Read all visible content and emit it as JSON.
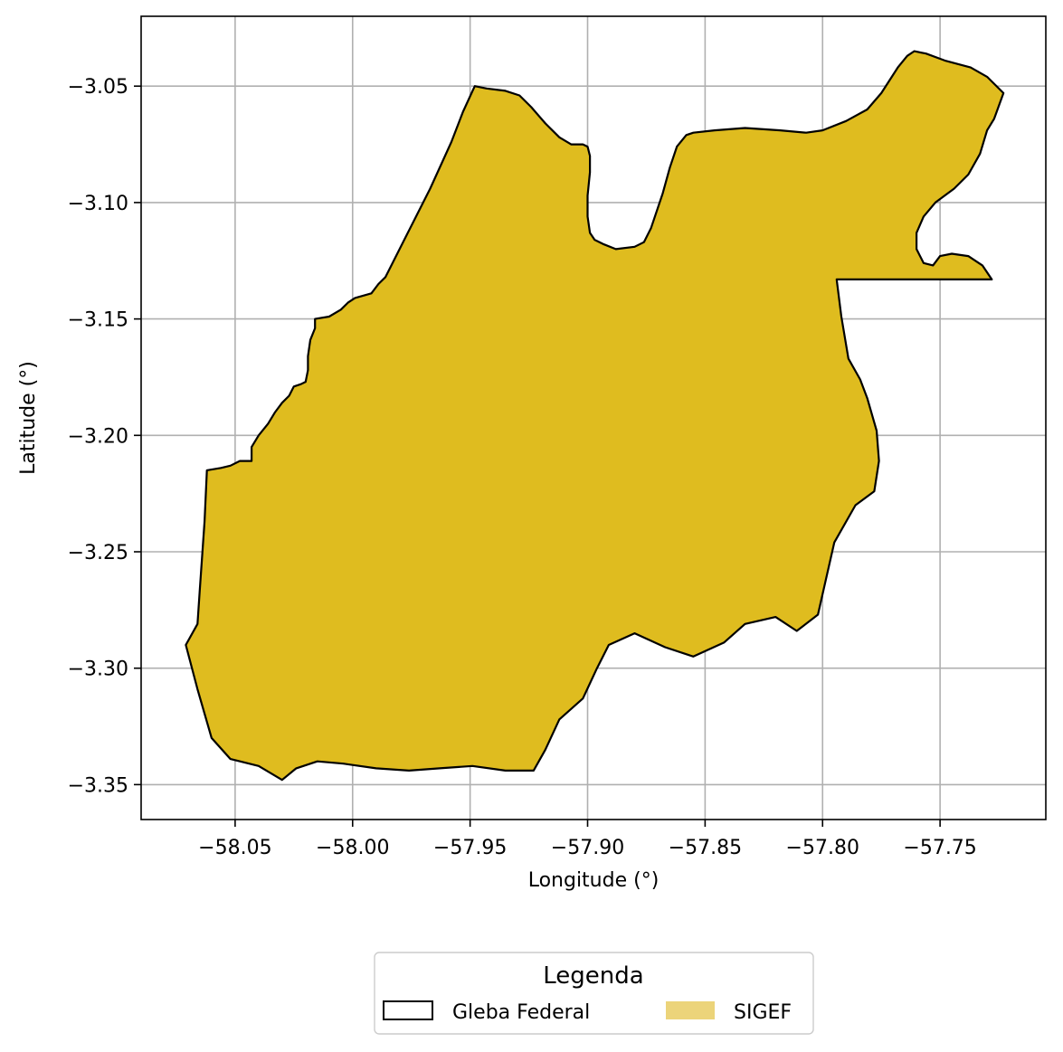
{
  "chart_data": {
    "type": "map",
    "title": "",
    "xlabel": "Longitude (°)",
    "ylabel": "Latitude (°)",
    "xlim": [
      -58.09,
      -57.705
    ],
    "ylim": [
      -3.365,
      -3.02
    ],
    "grid": true,
    "x_ticks": [
      -58.05,
      -58.0,
      -57.95,
      -57.9,
      -57.85,
      -57.8,
      -57.75
    ],
    "x_tick_labels": [
      "−58.05",
      "−58.00",
      "−57.95",
      "−57.90",
      "−57.85",
      "−57.80",
      "−57.75"
    ],
    "y_ticks": [
      -3.05,
      -3.1,
      -3.15,
      -3.2,
      -3.25,
      -3.3,
      -3.35
    ],
    "y_tick_labels": [
      "−3.05",
      "−3.10",
      "−3.15",
      "−3.20",
      "−3.25",
      "−3.30",
      "−3.35"
    ],
    "polygon": {
      "fill": "#dfbc1f",
      "stroke": "#000000",
      "coordinates": [
        [
          -57.948,
          -3.05
        ],
        [
          -57.943,
          -3.051
        ],
        [
          -57.935,
          -3.052
        ],
        [
          -57.929,
          -3.054
        ],
        [
          -57.924,
          -3.059
        ],
        [
          -57.918,
          -3.066
        ],
        [
          -57.912,
          -3.072
        ],
        [
          -57.907,
          -3.075
        ],
        [
          -57.902,
          -3.075
        ],
        [
          -57.9,
          -3.076
        ],
        [
          -57.899,
          -3.08
        ],
        [
          -57.899,
          -3.087
        ],
        [
          -57.9,
          -3.097
        ],
        [
          -57.9,
          -3.106
        ],
        [
          -57.899,
          -3.113
        ],
        [
          -57.897,
          -3.116
        ],
        [
          -57.893,
          -3.118
        ],
        [
          -57.888,
          -3.12
        ],
        [
          -57.88,
          -3.119
        ],
        [
          -57.876,
          -3.117
        ],
        [
          -57.873,
          -3.111
        ],
        [
          -57.868,
          -3.096
        ],
        [
          -57.865,
          -3.085
        ],
        [
          -57.862,
          -3.076
        ],
        [
          -57.858,
          -3.071
        ],
        [
          -57.855,
          -3.07
        ],
        [
          -57.846,
          -3.069
        ],
        [
          -57.833,
          -3.068
        ],
        [
          -57.818,
          -3.069
        ],
        [
          -57.807,
          -3.07
        ],
        [
          -57.8,
          -3.069
        ],
        [
          -57.79,
          -3.065
        ],
        [
          -57.781,
          -3.06
        ],
        [
          -57.775,
          -3.053
        ],
        [
          -57.768,
          -3.042
        ],
        [
          -57.764,
          -3.037
        ],
        [
          -57.761,
          -3.035
        ],
        [
          -57.756,
          -3.036
        ],
        [
          -57.748,
          -3.039
        ],
        [
          -57.737,
          -3.042
        ],
        [
          -57.73,
          -3.046
        ],
        [
          -57.723,
          -3.053
        ],
        [
          -57.727,
          -3.064
        ],
        [
          -57.73,
          -3.069
        ],
        [
          -57.733,
          -3.079
        ],
        [
          -57.738,
          -3.088
        ],
        [
          -57.744,
          -3.094
        ],
        [
          -57.752,
          -3.1
        ],
        [
          -57.757,
          -3.106
        ],
        [
          -57.76,
          -3.113
        ],
        [
          -57.76,
          -3.12
        ],
        [
          -57.757,
          -3.126
        ],
        [
          -57.753,
          -3.127
        ],
        [
          -57.75,
          -3.123
        ],
        [
          -57.745,
          -3.122
        ],
        [
          -57.738,
          -3.123
        ],
        [
          -57.732,
          -3.127
        ],
        [
          -57.728,
          -3.133
        ],
        [
          -57.794,
          -3.133
        ],
        [
          -57.792,
          -3.149
        ],
        [
          -57.789,
          -3.167
        ],
        [
          -57.784,
          -3.176
        ],
        [
          -57.781,
          -3.184
        ],
        [
          -57.777,
          -3.198
        ],
        [
          -57.776,
          -3.211
        ],
        [
          -57.778,
          -3.224
        ],
        [
          -57.786,
          -3.23
        ],
        [
          -57.795,
          -3.246
        ],
        [
          -57.802,
          -3.277
        ],
        [
          -57.811,
          -3.284
        ],
        [
          -57.82,
          -3.278
        ],
        [
          -57.833,
          -3.281
        ],
        [
          -57.842,
          -3.289
        ],
        [
          -57.855,
          -3.295
        ],
        [
          -57.867,
          -3.291
        ],
        [
          -57.88,
          -3.285
        ],
        [
          -57.891,
          -3.29
        ],
        [
          -57.896,
          -3.3
        ],
        [
          -57.902,
          -3.313
        ],
        [
          -57.912,
          -3.322
        ],
        [
          -57.918,
          -3.335
        ],
        [
          -57.923,
          -3.344
        ],
        [
          -57.935,
          -3.344
        ],
        [
          -57.949,
          -3.342
        ],
        [
          -57.963,
          -3.343
        ],
        [
          -57.976,
          -3.344
        ],
        [
          -57.99,
          -3.343
        ],
        [
          -58.004,
          -3.341
        ],
        [
          -58.015,
          -3.34
        ],
        [
          -58.024,
          -3.343
        ],
        [
          -58.03,
          -3.348
        ],
        [
          -58.04,
          -3.342
        ],
        [
          -58.052,
          -3.339
        ],
        [
          -58.06,
          -3.33
        ],
        [
          -58.066,
          -3.309
        ],
        [
          -58.071,
          -3.29
        ],
        [
          -58.066,
          -3.281
        ],
        [
          -58.065,
          -3.266
        ],
        [
          -58.063,
          -3.237
        ],
        [
          -58.062,
          -3.215
        ],
        [
          -58.056,
          -3.214
        ],
        [
          -58.052,
          -3.213
        ],
        [
          -58.048,
          -3.211
        ],
        [
          -58.043,
          -3.211
        ],
        [
          -58.043,
          -3.205
        ],
        [
          -58.04,
          -3.2
        ],
        [
          -58.036,
          -3.195
        ],
        [
          -58.033,
          -3.19
        ],
        [
          -58.03,
          -3.186
        ],
        [
          -58.027,
          -3.183
        ],
        [
          -58.025,
          -3.179
        ],
        [
          -58.022,
          -3.178
        ],
        [
          -58.02,
          -3.177
        ],
        [
          -58.019,
          -3.172
        ],
        [
          -58.019,
          -3.166
        ],
        [
          -58.018,
          -3.159
        ],
        [
          -58.016,
          -3.154
        ],
        [
          -58.016,
          -3.15
        ],
        [
          -58.01,
          -3.149
        ],
        [
          -58.005,
          -3.146
        ],
        [
          -58.002,
          -3.143
        ],
        [
          -57.999,
          -3.141
        ],
        [
          -57.992,
          -3.139
        ],
        [
          -57.989,
          -3.135
        ],
        [
          -57.986,
          -3.132
        ],
        [
          -57.977,
          -3.114
        ],
        [
          -57.967,
          -3.094
        ],
        [
          -57.958,
          -3.074
        ],
        [
          -57.953,
          -3.061
        ],
        [
          -57.948,
          -3.05
        ]
      ]
    },
    "legend": {
      "title": "Legenda",
      "placement": "bottom-center",
      "entries": [
        {
          "label": "Gleba Federal",
          "style": "outline",
          "color": "#000000"
        },
        {
          "label": "SIGEF",
          "style": "fill",
          "color": "#ecd47a"
        }
      ]
    }
  }
}
